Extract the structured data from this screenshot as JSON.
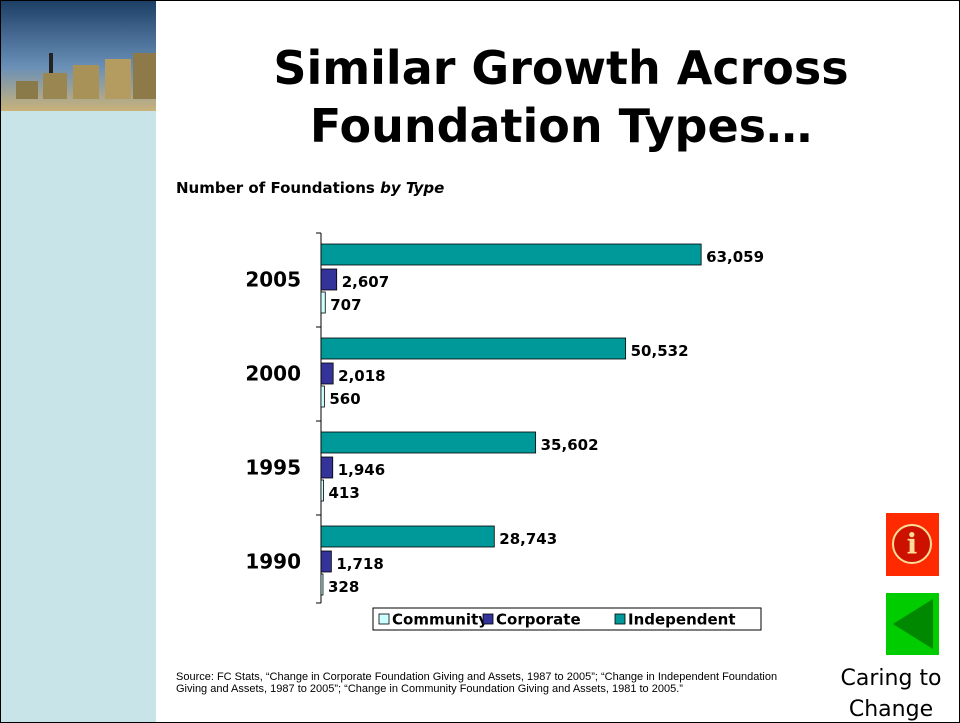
{
  "chart_data": {
    "type": "hbar",
    "title": "Similar Growth Across Foundation Types…",
    "subtitle": {
      "text": "Number of Foundations",
      "emphasis": "by Type"
    },
    "categories": [
      "2005",
      "2000",
      "1995",
      "1990"
    ],
    "series": [
      {
        "name": "Community",
        "color": "#ccffff",
        "values": [
          707,
          560,
          413,
          328
        ],
        "value_labels": [
          "707",
          "560",
          "413",
          "328"
        ]
      },
      {
        "name": "Corporate",
        "color": "#333399",
        "values": [
          2607,
          2018,
          1946,
          1718
        ],
        "value_labels": [
          "2,607",
          "2,018",
          "1,946",
          "1,718"
        ]
      },
      {
        "name": "Independent",
        "color": "#009999",
        "values": [
          63059,
          50532,
          35602,
          28743
        ],
        "value_labels": [
          "63,059",
          "50,532",
          "35,602",
          "28,743"
        ]
      }
    ],
    "xlim": [
      0,
      70000
    ],
    "source": "Source:  FC Stats, “Change in Corporate Foundation Giving and Assets, 1987 to 2005”; “Change in Independent Foundation Giving and Assets, 1987 to 2005”; “Change in Community Foundation Giving and Assets, 1981 to 2005.”"
  },
  "footer": {
    "brand": "Caring to Change"
  }
}
